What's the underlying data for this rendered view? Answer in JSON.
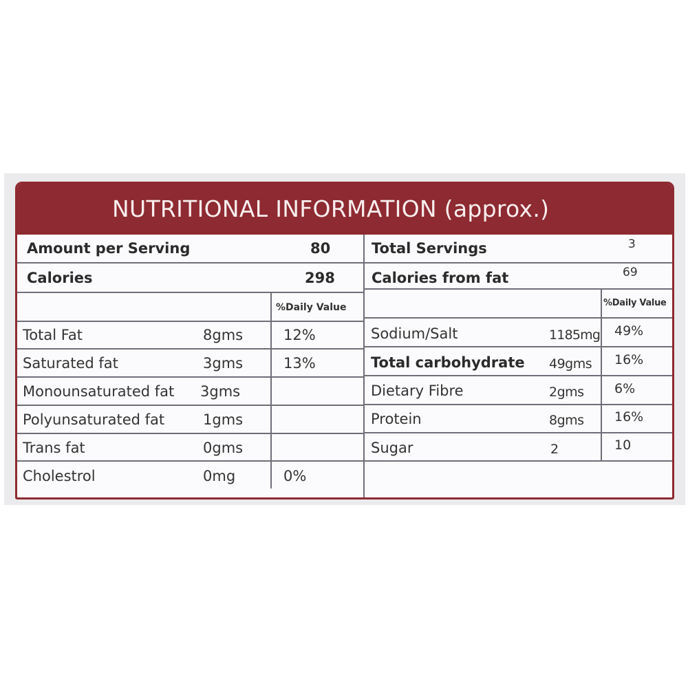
{
  "panel": {
    "title": "NUTRITIONAL INFORMATION (approx.)",
    "colors": {
      "banner": "#8e2a31",
      "rule": "#6e6e78",
      "background": "#fbfbfd"
    }
  },
  "summary": {
    "amount_per_serving": {
      "label": "Amount per Serving",
      "value": "80"
    },
    "calories": {
      "label": "Calories",
      "value": "298"
    },
    "total_servings": {
      "label": "Total Servings",
      "value": "3"
    },
    "calories_from_fat": {
      "label": "Calories from fat",
      "value": "69"
    }
  },
  "left": {
    "header": "%Daily Value",
    "rows": [
      {
        "name": "Total Fat",
        "amount": "8gms",
        "dv": "12%"
      },
      {
        "name": "Saturated fat",
        "amount": "3gms",
        "dv": "13%"
      },
      {
        "name": "Monounsaturated fat",
        "amount": "3gms",
        "dv": ""
      },
      {
        "name": "Polyunsaturated fat",
        "amount": "1gms",
        "dv": ""
      },
      {
        "name": "Trans fat",
        "amount": "0gms",
        "dv": ""
      },
      {
        "name": "Cholestrol",
        "amount": "0mg",
        "dv": "0%"
      }
    ]
  },
  "right": {
    "header": "%Daily Value",
    "rows": [
      {
        "name": "Sodium/Salt",
        "amount": "1185mg",
        "dv": "49%"
      },
      {
        "name": "Total carbohydrate",
        "amount": "49gms",
        "dv": "16%"
      },
      {
        "name": "Dietary Fibre",
        "amount": "2gms",
        "dv": "6%"
      },
      {
        "name": "Protein",
        "amount": "8gms",
        "dv": "16%"
      },
      {
        "name": "Sugar",
        "amount": "2",
        "dv": "10"
      }
    ]
  }
}
